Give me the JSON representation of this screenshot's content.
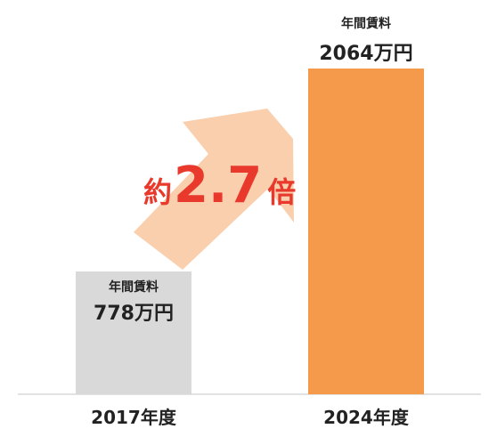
{
  "chart_data": {
    "type": "bar",
    "categories": [
      "2017年度",
      "2024年度"
    ],
    "values": [
      778,
      2064
    ],
    "unit": "万円",
    "bar_caption": "年間賃料",
    "value_labels": [
      "778万円",
      "2064万円"
    ],
    "colors": [
      "#d9d9d9",
      "#f5994a"
    ],
    "arrow_color": "#f9cfad",
    "annotation": {
      "prefix": "約",
      "value": "2.7",
      "suffix": "倍",
      "color": "#e8392c"
    },
    "ylim": [
      0,
      2064
    ],
    "grid": false,
    "legend": "none"
  }
}
